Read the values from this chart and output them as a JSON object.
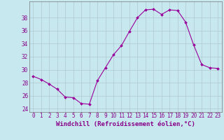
{
  "x": [
    0,
    1,
    2,
    3,
    4,
    5,
    6,
    7,
    8,
    9,
    10,
    11,
    12,
    13,
    14,
    15,
    16,
    17,
    18,
    19,
    20,
    21,
    22,
    23
  ],
  "y": [
    29.0,
    28.5,
    27.8,
    27.0,
    25.8,
    25.7,
    24.8,
    24.7,
    28.3,
    30.3,
    32.3,
    33.7,
    35.9,
    38.0,
    39.2,
    39.3,
    38.5,
    39.2,
    39.1,
    37.3,
    33.8,
    30.8,
    30.3,
    30.2
  ],
  "line_color": "#990099",
  "marker_color": "#990099",
  "bg_color": "#c8e8f0",
  "grid_color": "#b0c8d0",
  "xlabel": "Windchill (Refroidissement éolien,°C)",
  "ylabel_ticks": [
    24,
    26,
    28,
    30,
    32,
    34,
    36,
    38
  ],
  "xlim": [
    -0.5,
    23.5
  ],
  "ylim": [
    23.5,
    40.5
  ],
  "label_color": "#880088",
  "font_size_axis": 5.5,
  "font_size_xlabel": 6.5
}
